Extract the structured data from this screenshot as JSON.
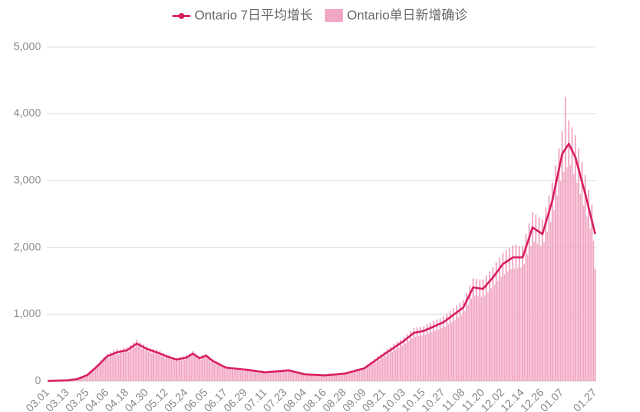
{
  "chart_data": {
    "type": "combo",
    "legend_position": "top",
    "grid": true,
    "ylim": [
      0,
      5000
    ],
    "yticks": [
      0,
      {
        "value": 1000,
        "label": "1,000"
      },
      {
        "value": 2000,
        "label": "2,000"
      },
      {
        "value": 3000,
        "label": "3,000"
      },
      {
        "value": 4000,
        "label": "4,000"
      },
      {
        "value": 5000,
        "label": "5,000"
      }
    ],
    "categories": [
      "03.01",
      null,
      null,
      null,
      null,
      null,
      null,
      null,
      null,
      null,
      null,
      null,
      "03.13",
      null,
      null,
      null,
      null,
      null,
      null,
      null,
      null,
      null,
      null,
      null,
      "03.25",
      null,
      null,
      null,
      null,
      null,
      null,
      null,
      null,
      null,
      null,
      null,
      "04.06",
      null,
      null,
      null,
      null,
      null,
      null,
      null,
      null,
      null,
      null,
      null,
      "04.18",
      null,
      null,
      null,
      null,
      null,
      null,
      null,
      null,
      null,
      null,
      null,
      "04.30",
      null,
      null,
      null,
      null,
      null,
      null,
      null,
      null,
      null,
      null,
      null,
      "05.12",
      null,
      null,
      null,
      null,
      null,
      null,
      null,
      null,
      null,
      null,
      null,
      "05.24",
      null,
      null,
      null,
      null,
      null,
      null,
      null,
      null,
      null,
      null,
      null,
      "06.05",
      null,
      null,
      null,
      null,
      null,
      null,
      null,
      null,
      null,
      null,
      null,
      "06.17",
      null,
      null,
      null,
      null,
      null,
      null,
      null,
      null,
      null,
      null,
      null,
      "06.29",
      null,
      null,
      null,
      null,
      null,
      null,
      null,
      null,
      null,
      null,
      null,
      "07.11",
      null,
      null,
      null,
      null,
      null,
      null,
      null,
      null,
      null,
      null,
      null,
      "07.23",
      null,
      null,
      null,
      null,
      null,
      null,
      null,
      null,
      null,
      null,
      null,
      "08.04",
      null,
      null,
      null,
      null,
      null,
      null,
      null,
      null,
      null,
      null,
      null,
      "08.16",
      null,
      null,
      null,
      null,
      null,
      null,
      null,
      null,
      null,
      null,
      null,
      "08.28",
      null,
      null,
      null,
      null,
      null,
      null,
      null,
      null,
      null,
      null,
      null,
      "09.09",
      null,
      null,
      null,
      null,
      null,
      null,
      null,
      null,
      null,
      null,
      null,
      "09.21",
      null,
      null,
      null,
      null,
      null,
      null,
      null,
      null,
      null,
      null,
      null,
      "10.03",
      null,
      null,
      null,
      null,
      null,
      null,
      null,
      null,
      null,
      null,
      null,
      "10.15",
      null,
      null,
      null,
      null,
      null,
      null,
      null,
      null,
      null,
      null,
      null,
      "10.27",
      null,
      null,
      null,
      null,
      null,
      null,
      null,
      null,
      null,
      null,
      null,
      "11.08",
      null,
      null,
      null,
      null,
      null,
      null,
      null,
      null,
      null,
      null,
      null,
      "11.20",
      null,
      null,
      null,
      null,
      null,
      null,
      null,
      null,
      null,
      null,
      null,
      "12.02",
      null,
      null,
      null,
      null,
      null,
      null,
      null,
      null,
      null,
      null,
      null,
      "12.14",
      null,
      null,
      null,
      null,
      null,
      null,
      null,
      null,
      null,
      null,
      null,
      "12.26",
      null,
      null,
      null,
      null,
      null,
      null,
      null,
      null,
      null,
      null,
      null,
      "01.07",
      null,
      null,
      null,
      null,
      null,
      null,
      null,
      null,
      null,
      null,
      null,
      null,
      null,
      null,
      null,
      null,
      null,
      null,
      null,
      "01.27"
    ],
    "series": [
      {
        "name": "Ontario 7日平均增长",
        "type": "line",
        "color": "#d81b60",
        "values": [
          0,
          1,
          2,
          3,
          3,
          4,
          5,
          6,
          7,
          8,
          8,
          9,
          10,
          13,
          17,
          20,
          23,
          27,
          30,
          40,
          50,
          60,
          70,
          80,
          90,
          112,
          134,
          155,
          177,
          198,
          220,
          245,
          270,
          295,
          320,
          345,
          370,
          380,
          390,
          400,
          410,
          420,
          430,
          435,
          440,
          445,
          450,
          455,
          460,
          477,
          493,
          510,
          527,
          543,
          560,
          547,
          533,
          520,
          507,
          493,
          480,
          472,
          463,
          455,
          447,
          438,
          430,
          420,
          410,
          400,
          390,
          380,
          370,
          362,
          353,
          345,
          337,
          328,
          320,
          325,
          330,
          335,
          340,
          345,
          350,
          365,
          380,
          395,
          410,
          392,
          375,
          358,
          340,
          350,
          360,
          370,
          380,
          360,
          340,
          320,
          300,
          288,
          275,
          263,
          250,
          238,
          225,
          213,
          200,
          198,
          195,
          193,
          190,
          188,
          185,
          183,
          180,
          178,
          175,
          173,
          170,
          167,
          163,
          160,
          157,
          153,
          150,
          147,
          143,
          140,
          137,
          133,
          130,
          132,
          134,
          136,
          138,
          140,
          142,
          144,
          146,
          148,
          150,
          153,
          155,
          158,
          160,
          154,
          148,
          142,
          136,
          130,
          124,
          118,
          112,
          106,
          100,
          99,
          97,
          96,
          95,
          94,
          92,
          91,
          90,
          89,
          87,
          86,
          85,
          87,
          89,
          91,
          93,
          95,
          97,
          99,
          102,
          104,
          106,
          108,
          110,
          117,
          123,
          130,
          137,
          143,
          150,
          157,
          163,
          170,
          177,
          183,
          190,
          208,
          225,
          243,
          260,
          278,
          295,
          313,
          330,
          348,
          365,
          383,
          400,
          417,
          433,
          450,
          467,
          483,
          500,
          517,
          533,
          550,
          567,
          583,
          600,
          620,
          640,
          660,
          680,
          700,
          720,
          725,
          730,
          735,
          740,
          745,
          750,
          761,
          772,
          783,
          793,
          804,
          815,
          826,
          837,
          848,
          858,
          869,
          880,
          898,
          917,
          935,
          953,
          972,
          990,
          1008,
          1027,
          1045,
          1063,
          1082,
          1100,
          1150,
          1200,
          1250,
          1300,
          1350,
          1400,
          1397,
          1393,
          1390,
          1387,
          1383,
          1380,
          1408,
          1437,
          1465,
          1493,
          1522,
          1550,
          1583,
          1617,
          1650,
          1683,
          1717,
          1750,
          1767,
          1783,
          1800,
          1817,
          1833,
          1850,
          1850,
          1850,
          1850,
          1850,
          1850,
          1850,
          1925,
          2000,
          2075,
          2150,
          2225,
          2300,
          2283,
          2267,
          2250,
          2233,
          2217,
          2200,
          2283,
          2367,
          2450,
          2533,
          2617,
          2700,
          2817,
          2933,
          3050,
          3167,
          3283,
          3400,
          3438,
          3475,
          3513,
          3550,
          3500,
          3450,
          3400,
          3350,
          3258,
          3167,
          3075,
          2983,
          2892,
          2800,
          2700,
          2600,
          2500,
          2400,
          2300,
          2200
        ]
      },
      {
        "name": "Ontario单日新增确诊",
        "type": "bar",
        "color": "#f1a7c3",
        "values": [
          0,
          0,
          2,
          4,
          3,
          5,
          5,
          7,
          8,
          10,
          6,
          11,
          12,
          14,
          20,
          18,
          25,
          32,
          34,
          38,
          58,
          55,
          78,
          85,
          100,
          105,
          150,
          140,
          190,
          210,
          250,
          220,
          310,
          270,
          360,
          330,
          410,
          350,
          430,
          380,
          460,
          390,
          480,
          400,
          470,
          420,
          500,
          430,
          500,
          440,
          540,
          480,
          580,
          510,
          620,
          520,
          580,
          480,
          550,
          460,
          520,
          440,
          500,
          420,
          480,
          410,
          470,
          390,
          450,
          370,
          420,
          350,
          400,
          340,
          390,
          320,
          360,
          300,
          350,
          300,
          360,
          310,
          370,
          320,
          390,
          340,
          410,
          370,
          450,
          370,
          400,
          330,
          370,
          320,
          390,
          350,
          410,
          340,
          360,
          290,
          330,
          260,
          300,
          240,
          270,
          220,
          240,
          200,
          220,
          180,
          210,
          175,
          205,
          170,
          200,
          165,
          195,
          160,
          190,
          160,
          185,
          150,
          175,
          145,
          170,
          140,
          165,
          130,
          155,
          125,
          150,
          120,
          140,
          118,
          145,
          125,
          150,
          128,
          155,
          132,
          160,
          135,
          165,
          140,
          170,
          145,
          175,
          140,
          160,
          130,
          150,
          118,
          135,
          105,
          120,
          95,
          110,
          88,
          105,
          85,
          102,
          84,
          100,
          80,
          98,
          80,
          95,
          78,
          92,
          78,
          97,
          82,
          101,
          86,
          105,
          90,
          112,
          94,
          115,
          98,
          120,
          105,
          135,
          118,
          150,
          130,
          165,
          140,
          180,
          155,
          195,
          165,
          210,
          185,
          250,
          220,
          290,
          250,
          330,
          280,
          370,
          310,
          400,
          350,
          440,
          370,
          480,
          410,
          510,
          440,
          560,
          470,
          590,
          500,
          620,
          530,
          660,
          560,
          700,
          600,
          750,
          640,
          790,
          660,
          800,
          670,
          810,
          680,
          820,
          690,
          850,
          710,
          870,
          730,
          900,
          750,
          920,
          770,
          940,
          790,
          970,
          810,
          1010,
          850,
          1050,
          880,
          1090,
          910,
          1130,
          950,
          1170,
          980,
          1210,
          1050,
          1320,
          1140,
          1430,
          1230,
          1540,
          1280,
          1530,
          1270,
          1520,
          1260,
          1520,
          1280,
          1580,
          1330,
          1640,
          1390,
          1700,
          1440,
          1780,
          1500,
          1850,
          1560,
          1920,
          1600,
          1960,
          1640,
          2000,
          1670,
          2030,
          1680,
          2040,
          1690,
          2020,
          1700,
          2030,
          1750,
          2200,
          1890,
          2360,
          2020,
          2530,
          2080,
          2490,
          2050,
          2450,
          2020,
          2420,
          2080,
          2600,
          2230,
          2780,
          2380,
          2970,
          2560,
          3230,
          2780,
          3480,
          2990,
          3740,
          3130,
          4250,
          3200,
          3900,
          3230,
          3800,
          3100,
          3680,
          2970,
          3480,
          2800,
          3280,
          2630,
          3080,
          2460,
          2860,
          2280,
          2640,
          2100,
          1680
        ]
      }
    ]
  }
}
